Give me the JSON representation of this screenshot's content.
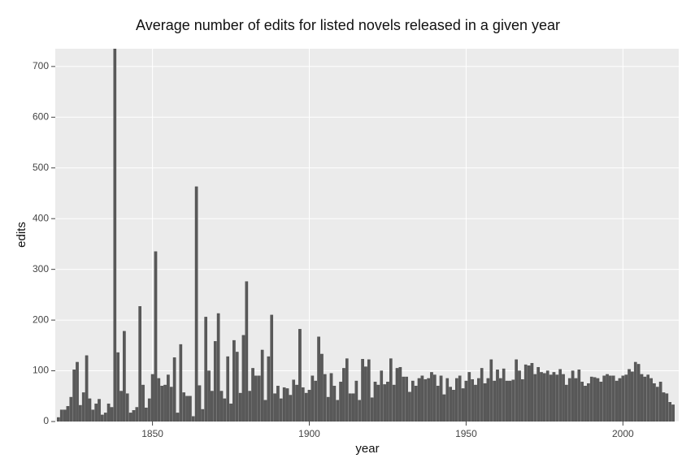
{
  "chart_data": {
    "type": "bar",
    "title": "Average number of edits for listed novels released in a given year",
    "xlabel": "year",
    "ylabel": "edits",
    "color": "#595959",
    "background": "#ebebeb",
    "grid": true,
    "xlim": [
      1819,
      2017.8
    ],
    "ylim": [
      0,
      735
    ],
    "xticks": [
      1850,
      1900,
      1950,
      2000
    ],
    "yticks": [
      0,
      100,
      200,
      300,
      400,
      500,
      600,
      700
    ],
    "x": [
      1820,
      1821,
      1822,
      1823,
      1824,
      1825,
      1826,
      1827,
      1828,
      1829,
      1830,
      1831,
      1832,
      1833,
      1834,
      1835,
      1836,
      1837,
      1838,
      1839,
      1840,
      1841,
      1842,
      1843,
      1844,
      1845,
      1846,
      1847,
      1848,
      1849,
      1850,
      1851,
      1852,
      1853,
      1854,
      1855,
      1856,
      1857,
      1858,
      1859,
      1860,
      1861,
      1862,
      1863,
      1864,
      1865,
      1866,
      1867,
      1868,
      1869,
      1870,
      1871,
      1872,
      1873,
      1874,
      1875,
      1876,
      1877,
      1878,
      1879,
      1880,
      1881,
      1882,
      1883,
      1884,
      1885,
      1886,
      1887,
      1888,
      1889,
      1890,
      1891,
      1892,
      1893,
      1894,
      1895,
      1896,
      1897,
      1898,
      1899,
      1900,
      1901,
      1902,
      1903,
      1904,
      1905,
      1906,
      1907,
      1908,
      1909,
      1910,
      1911,
      1912,
      1913,
      1914,
      1915,
      1916,
      1917,
      1918,
      1919,
      1920,
      1921,
      1922,
      1923,
      1924,
      1925,
      1926,
      1927,
      1928,
      1929,
      1930,
      1931,
      1932,
      1933,
      1934,
      1935,
      1936,
      1937,
      1938,
      1939,
      1940,
      1941,
      1942,
      1943,
      1944,
      1945,
      1946,
      1947,
      1948,
      1949,
      1950,
      1951,
      1952,
      1953,
      1954,
      1955,
      1956,
      1957,
      1958,
      1959,
      1960,
      1961,
      1962,
      1963,
      1964,
      1965,
      1966,
      1967,
      1968,
      1969,
      1970,
      1971,
      1972,
      1973,
      1974,
      1975,
      1976,
      1977,
      1978,
      1979,
      1980,
      1981,
      1982,
      1983,
      1984,
      1985,
      1986,
      1987,
      1988,
      1989,
      1990,
      1991,
      1992,
      1993,
      1994,
      1995,
      1996,
      1997,
      1998,
      1999,
      2000,
      2001,
      2002,
      2003,
      2004,
      2005,
      2006,
      2007,
      2008,
      2009,
      2010,
      2011,
      2012,
      2013,
      2014,
      2015,
      2016
    ],
    "values": [
      8,
      23,
      23,
      30,
      48,
      102,
      117,
      32,
      57,
      130,
      45,
      23,
      35,
      44,
      13,
      17,
      35,
      28,
      735,
      136,
      60,
      178,
      55,
      17,
      22,
      28,
      227,
      72,
      27,
      45,
      93,
      335,
      85,
      70,
      72,
      92,
      68,
      126,
      17,
      152,
      57,
      50,
      50,
      10,
      463,
      71,
      24,
      206,
      100,
      60,
      158,
      213,
      60,
      45,
      128,
      35,
      160,
      137,
      56,
      170,
      276,
      60,
      105,
      90,
      90,
      141,
      42,
      128,
      210,
      55,
      70,
      45,
      67,
      65,
      52,
      82,
      72,
      182,
      67,
      56,
      62,
      90,
      80,
      167,
      133,
      93,
      48,
      95,
      70,
      42,
      78,
      105,
      124,
      55,
      55,
      80,
      42,
      123,
      108,
      122,
      47,
      78,
      72,
      100,
      73,
      78,
      124,
      72,
      105,
      107,
      88,
      88,
      58,
      80,
      70,
      85,
      90,
      83,
      85,
      97,
      92,
      70,
      90,
      53,
      85,
      68,
      62,
      85,
      90,
      65,
      80,
      97,
      83,
      72,
      85,
      105,
      75,
      85,
      122,
      80,
      102,
      85,
      104,
      80,
      80,
      82,
      122,
      100,
      83,
      112,
      110,
      115,
      93,
      107,
      97,
      95,
      100,
      92,
      97,
      92,
      103,
      93,
      72,
      85,
      100,
      85,
      102,
      78,
      70,
      75,
      88,
      87,
      85,
      78,
      90,
      93,
      90,
      90,
      80,
      85,
      90,
      92,
      103,
      98,
      117,
      113,
      93,
      88,
      92,
      85,
      75,
      68,
      78,
      57,
      55,
      38,
      33
    ]
  }
}
